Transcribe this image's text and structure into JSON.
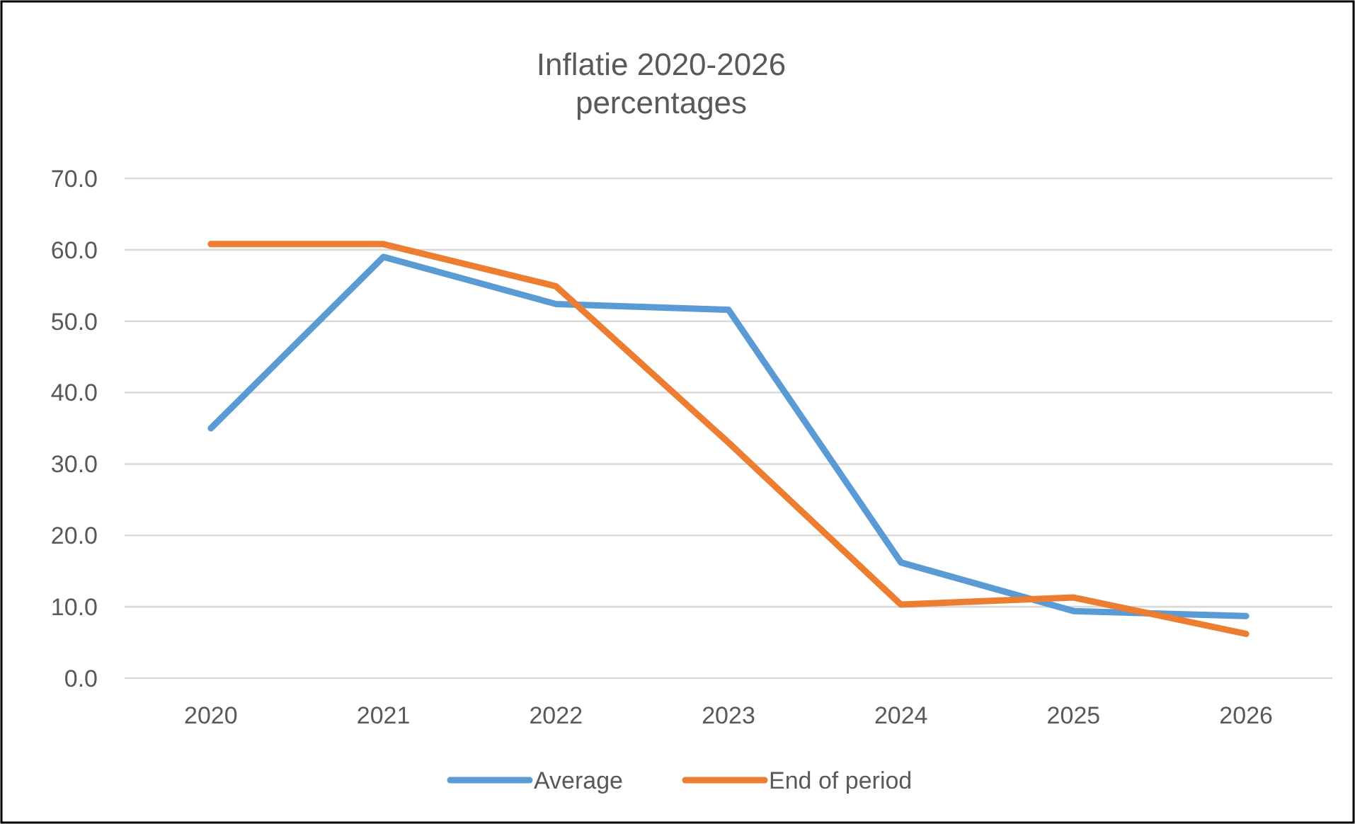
{
  "chart_data": {
    "type": "line",
    "title": "Inflatie 2020-2026\npercentages",
    "categories": [
      "2020",
      "2021",
      "2022",
      "2023",
      "2024",
      "2025",
      "2026"
    ],
    "series": [
      {
        "name": "Average",
        "color": "#5b9bd5",
        "values": [
          35.0,
          59.0,
          52.4,
          51.6,
          16.2,
          9.4,
          8.7
        ]
      },
      {
        "name": "End of period",
        "color": "#ed7d31",
        "values": [
          60.8,
          60.8,
          54.9,
          33.0,
          10.3,
          11.3,
          6.2
        ]
      }
    ],
    "ylim": [
      0,
      70
    ],
    "yticks": [
      {
        "value": 0,
        "label": "0.0"
      },
      {
        "value": 10,
        "label": "10.0"
      },
      {
        "value": 20,
        "label": "20.0"
      },
      {
        "value": 30,
        "label": "30.0"
      },
      {
        "value": 40,
        "label": "40.0"
      },
      {
        "value": 50,
        "label": "50.0"
      },
      {
        "value": 60,
        "label": "60.0"
      },
      {
        "value": 70,
        "label": "70.0"
      }
    ],
    "grid": "y",
    "legend": "bottom",
    "marker": "none",
    "line_style": "solid"
  }
}
